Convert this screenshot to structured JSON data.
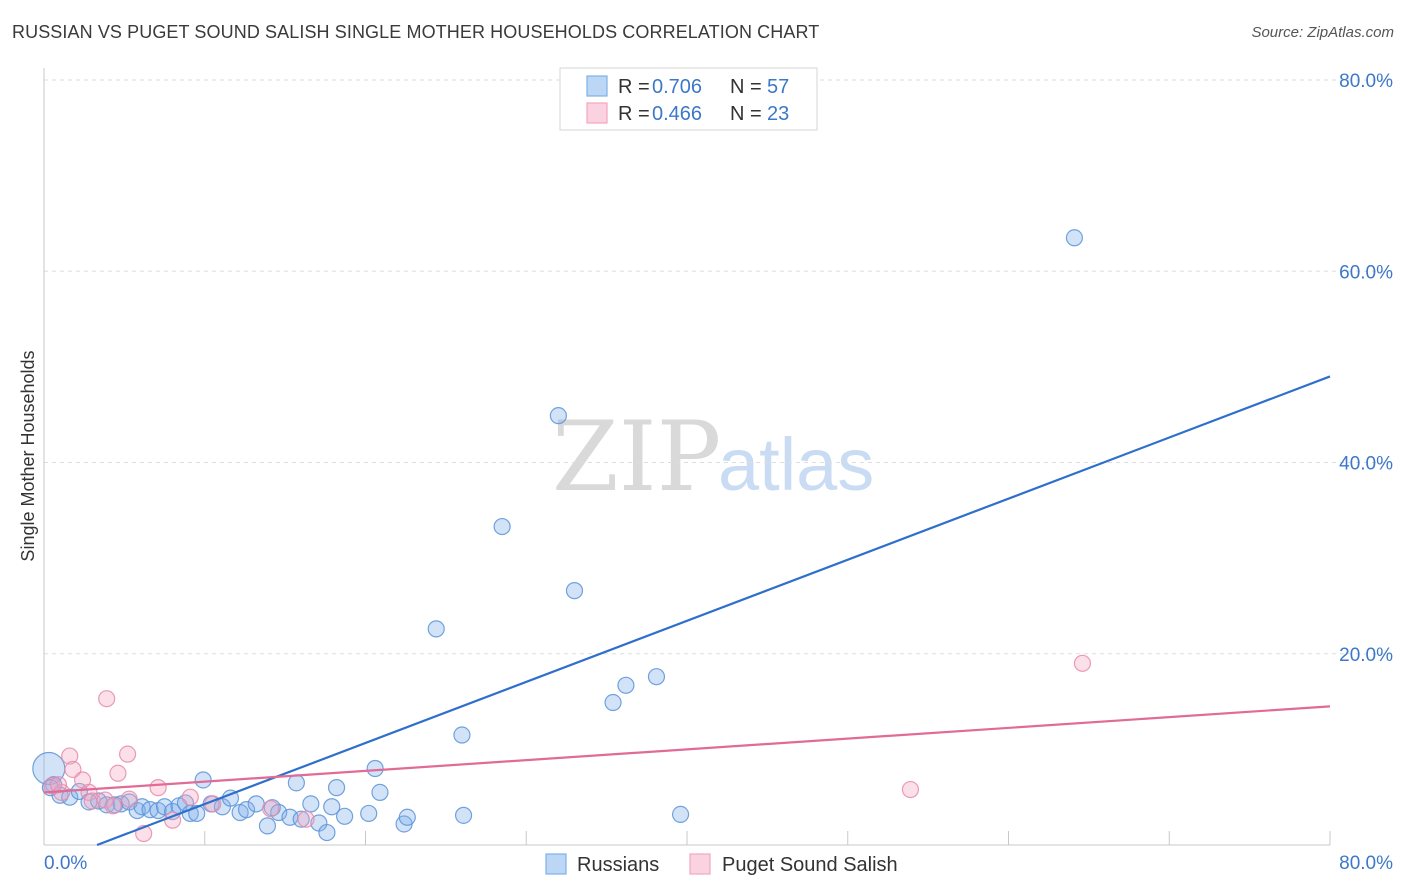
{
  "header": {
    "title": "RUSSIAN VS PUGET SOUND SALISH SINGLE MOTHER HOUSEHOLDS CORRELATION CHART",
    "source": "Source: ZipAtlas.com"
  },
  "watermark": {
    "zip": "ZIP",
    "atlas": "atlas"
  },
  "legend": {
    "rows": [
      {
        "r_label": "R = ",
        "r_value": "0.706",
        "n_label": "N = ",
        "n_value": "57",
        "color": "#7fb0ea"
      },
      {
        "r_label": "R = ",
        "r_value": "0.466",
        "n_label": "N = ",
        "n_value": "23",
        "color": "#f4a7bf"
      }
    ]
  },
  "chart_data": {
    "type": "scatter",
    "title": "RUSSIAN VS PUGET SOUND SALISH SINGLE MOTHER HOUSEHOLDS CORRELATION CHART",
    "xlabel": "",
    "ylabel": "Single Mother Households",
    "xlim": [
      0,
      80
    ],
    "ylim": [
      0,
      80
    ],
    "x_tick_labels": [
      "0.0%",
      "80.0%"
    ],
    "y_tick_labels": [
      "20.0%",
      "40.0%",
      "60.0%",
      "80.0%"
    ],
    "y_ticks": [
      20,
      40,
      60,
      80
    ],
    "grid": true,
    "series": [
      {
        "name": "Russians",
        "color": "#7fb0ea",
        "stroke": "#5b93d8",
        "line_color": "#2f6fcc",
        "trend": {
          "x0": 3.3,
          "y0": 0.0,
          "x1": 80.0,
          "y1": 49.0
        },
        "points": [
          [
            0.3,
            8.0
          ],
          [
            0.6,
            6.3
          ],
          [
            1.0,
            5.2
          ],
          [
            1.6,
            5.0
          ],
          [
            2.2,
            5.6
          ],
          [
            2.8,
            4.5
          ],
          [
            3.4,
            4.6
          ],
          [
            3.9,
            4.2
          ],
          [
            4.4,
            4.2
          ],
          [
            4.8,
            4.3
          ],
          [
            5.3,
            4.5
          ],
          [
            5.8,
            3.6
          ],
          [
            6.1,
            4.0
          ],
          [
            6.6,
            3.7
          ],
          [
            7.1,
            3.6
          ],
          [
            7.5,
            4.0
          ],
          [
            8.0,
            3.5
          ],
          [
            8.4,
            4.1
          ],
          [
            8.8,
            4.4
          ],
          [
            9.1,
            3.3
          ],
          [
            9.5,
            3.3
          ],
          [
            9.9,
            6.8
          ],
          [
            10.4,
            4.3
          ],
          [
            11.1,
            4.0
          ],
          [
            11.6,
            4.9
          ],
          [
            12.2,
            3.4
          ],
          [
            12.6,
            3.7
          ],
          [
            13.2,
            4.3
          ],
          [
            13.9,
            2.0
          ],
          [
            14.2,
            3.9
          ],
          [
            14.6,
            3.4
          ],
          [
            15.3,
            2.9
          ],
          [
            15.7,
            6.5
          ],
          [
            16.0,
            2.7
          ],
          [
            16.6,
            4.3
          ],
          [
            17.1,
            2.3
          ],
          [
            17.6,
            1.3
          ],
          [
            17.9,
            4.0
          ],
          [
            18.2,
            6.0
          ],
          [
            18.7,
            3.0
          ],
          [
            20.2,
            3.3
          ],
          [
            20.6,
            8.0
          ],
          [
            20.9,
            5.5
          ],
          [
            22.4,
            2.2
          ],
          [
            22.6,
            2.9
          ],
          [
            24.4,
            22.6
          ],
          [
            26.0,
            11.5
          ],
          [
            26.1,
            3.1
          ],
          [
            28.5,
            33.3
          ],
          [
            32.0,
            44.9
          ],
          [
            33.0,
            26.6
          ],
          [
            35.4,
            14.9
          ],
          [
            36.2,
            16.7
          ],
          [
            38.1,
            17.6
          ],
          [
            39.6,
            3.2
          ],
          [
            64.1,
            63.5
          ],
          [
            0.4,
            6.0
          ]
        ]
      },
      {
        "name": "Puget Sound Salish",
        "color": "#f4a7bf",
        "stroke": "#e88aaa",
        "line_color": "#e06b97",
        "trend": {
          "x0": 0.0,
          "y0": 5.5,
          "x1": 80.0,
          "y1": 14.5
        },
        "points": [
          [
            0.5,
            6.2
          ],
          [
            1.1,
            5.5
          ],
          [
            1.6,
            9.3
          ],
          [
            1.8,
            7.9
          ],
          [
            2.4,
            6.8
          ],
          [
            2.8,
            5.5
          ],
          [
            3.0,
            4.6
          ],
          [
            3.8,
            4.7
          ],
          [
            4.3,
            4.1
          ],
          [
            3.9,
            15.3
          ],
          [
            4.6,
            7.5
          ],
          [
            5.2,
            9.5
          ],
          [
            5.3,
            4.8
          ],
          [
            6.2,
            1.2
          ],
          [
            7.1,
            6.0
          ],
          [
            8.0,
            2.6
          ],
          [
            9.1,
            5.0
          ],
          [
            10.5,
            4.3
          ],
          [
            14.1,
            3.8
          ],
          [
            16.3,
            2.7
          ],
          [
            53.9,
            5.8
          ],
          [
            64.6,
            19.0
          ],
          [
            0.9,
            6.3
          ]
        ]
      }
    ]
  },
  "bottom_legend": {
    "items": [
      {
        "label": "Russians",
        "color": "#7fb0ea"
      },
      {
        "label": "Puget Sound Salish",
        "color": "#f4a7bf"
      }
    ]
  }
}
